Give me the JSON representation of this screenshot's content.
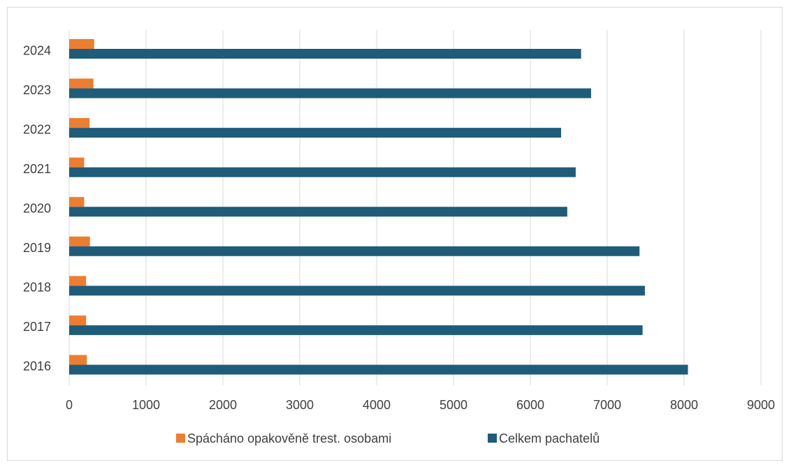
{
  "chart_data": {
    "type": "bar",
    "orientation": "horizontal",
    "title": "",
    "xlabel": "",
    "ylabel": "",
    "categories": [
      "2016",
      "2017",
      "2018",
      "2019",
      "2020",
      "2021",
      "2022",
      "2023",
      "2024"
    ],
    "series": [
      {
        "name": "Spácháno opakověně trest. osobami",
        "color": "#ED7D31",
        "values": [
          230,
          220,
          220,
          270,
          195,
          195,
          265,
          315,
          325
        ]
      },
      {
        "name": "Celkem pachatelů",
        "color": "#1F5C7A",
        "values": [
          8050,
          7460,
          7490,
          7420,
          6480,
          6590,
          6400,
          6790,
          6660
        ]
      }
    ],
    "xlim": [
      0,
      9000
    ],
    "xticks": [
      "0",
      "1000",
      "2000",
      "3000",
      "4000",
      "5000",
      "6000",
      "7000",
      "8000",
      "9000"
    ],
    "grid": true,
    "legend_position": "bottom"
  }
}
